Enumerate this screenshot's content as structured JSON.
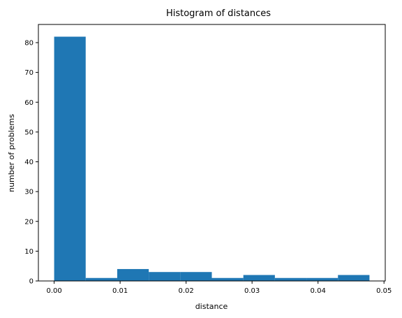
{
  "chart_data": {
    "type": "bar",
    "title": "Histogram of distances",
    "xlabel": "distance",
    "ylabel": "number of problems",
    "bin_edges": [
      0.0,
      0.00478,
      0.00956,
      0.01434,
      0.01912,
      0.0239,
      0.02868,
      0.03346,
      0.03824,
      0.04302,
      0.0478
    ],
    "values": [
      82,
      1,
      4,
      3,
      3,
      1,
      2,
      1,
      1,
      2
    ],
    "xlim": [
      -0.00239,
      0.05019
    ],
    "ylim": [
      0,
      86.1
    ],
    "xticks": [
      0.0,
      0.01,
      0.02,
      0.03,
      0.04,
      0.05
    ],
    "xtick_labels": [
      "0.00",
      "0.01",
      "0.02",
      "0.03",
      "0.04",
      "0.05"
    ],
    "yticks": [
      0,
      10,
      20,
      30,
      40,
      50,
      60,
      70,
      80
    ],
    "ytick_labels": [
      "0",
      "10",
      "20",
      "30",
      "40",
      "50",
      "60",
      "70",
      "80"
    ],
    "grid": false,
    "legend": "none",
    "bar_color": "#1f77b4"
  }
}
